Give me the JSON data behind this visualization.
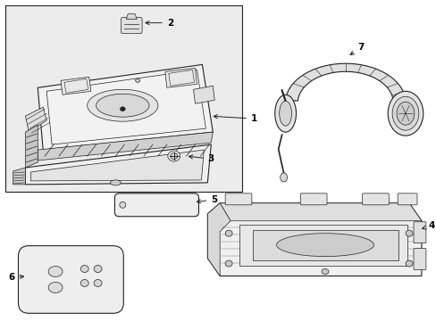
{
  "bg_color": "#ffffff",
  "box_fill": "#ececec",
  "line_color": "#222222",
  "label_color": "#000000",
  "lw_main": 0.8,
  "lw_thin": 0.5,
  "fontsize": 7.5
}
